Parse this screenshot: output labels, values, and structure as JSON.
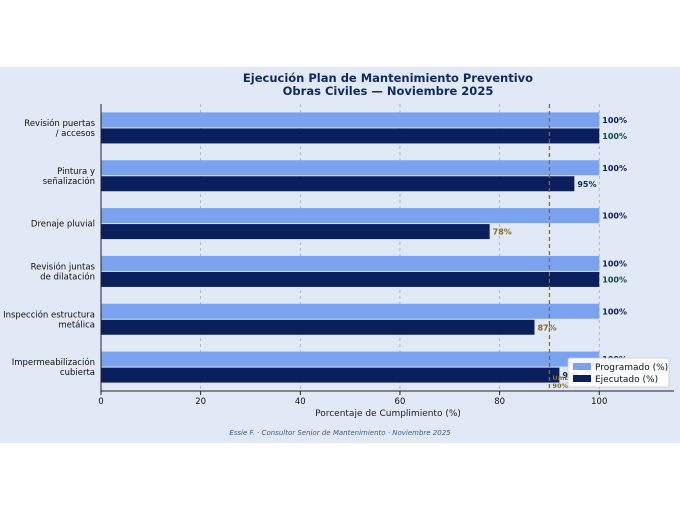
{
  "chart_data": {
    "type": "bar",
    "orientation": "horizontal",
    "title": "Ejecución Plan de Mantenimiento Preventivo",
    "subtitle": "Obras Civiles — Noviembre 2025",
    "xlabel": "Porcentaje de Cumplimiento (%)",
    "ylabel": "",
    "xlim": [
      0,
      115
    ],
    "xticks": [
      "0",
      "20",
      "40",
      "60",
      "80",
      "100"
    ],
    "grid": "vertical-dashed",
    "categories": [
      [
        "Revisión puertas",
        "/ accesos"
      ],
      [
        "Pintura y",
        "señalización"
      ],
      [
        "Drenaje pluvial"
      ],
      [
        "Revisión juntas",
        "de dilatación"
      ],
      [
        "Inspección estructura",
        "metálica"
      ],
      [
        "Impermeabilización",
        "cubierta"
      ]
    ],
    "series": [
      {
        "name": "Programado (%)",
        "color": "#7aa2ee",
        "values": [
          100,
          100,
          100,
          100,
          100,
          100
        ],
        "labels": [
          "100%",
          "100%",
          "100%",
          "100%",
          "100%",
          "100%"
        ]
      },
      {
        "name": "Ejecutado (%)",
        "color": "#0b1f5c",
        "values": [
          100,
          95,
          78,
          100,
          87,
          92
        ],
        "labels": [
          "100%",
          "95%",
          "78%",
          "100%",
          "87%",
          "92%"
        ],
        "label_colors": [
          "#0e4d4d",
          "#0e2f6a",
          "#8a6d1e",
          "#0e4d4d",
          "#8a6d1e",
          "#0e2f6a"
        ]
      }
    ],
    "threshold": {
      "value": 90,
      "label_lines": [
        "Umbral",
        "90%"
      ],
      "color": "#8a6d1e"
    },
    "legend": {
      "position": "lower-right"
    },
    "footer": "Essie F. · Consultor Senior de Mantenimiento · Noviembre 2025"
  }
}
